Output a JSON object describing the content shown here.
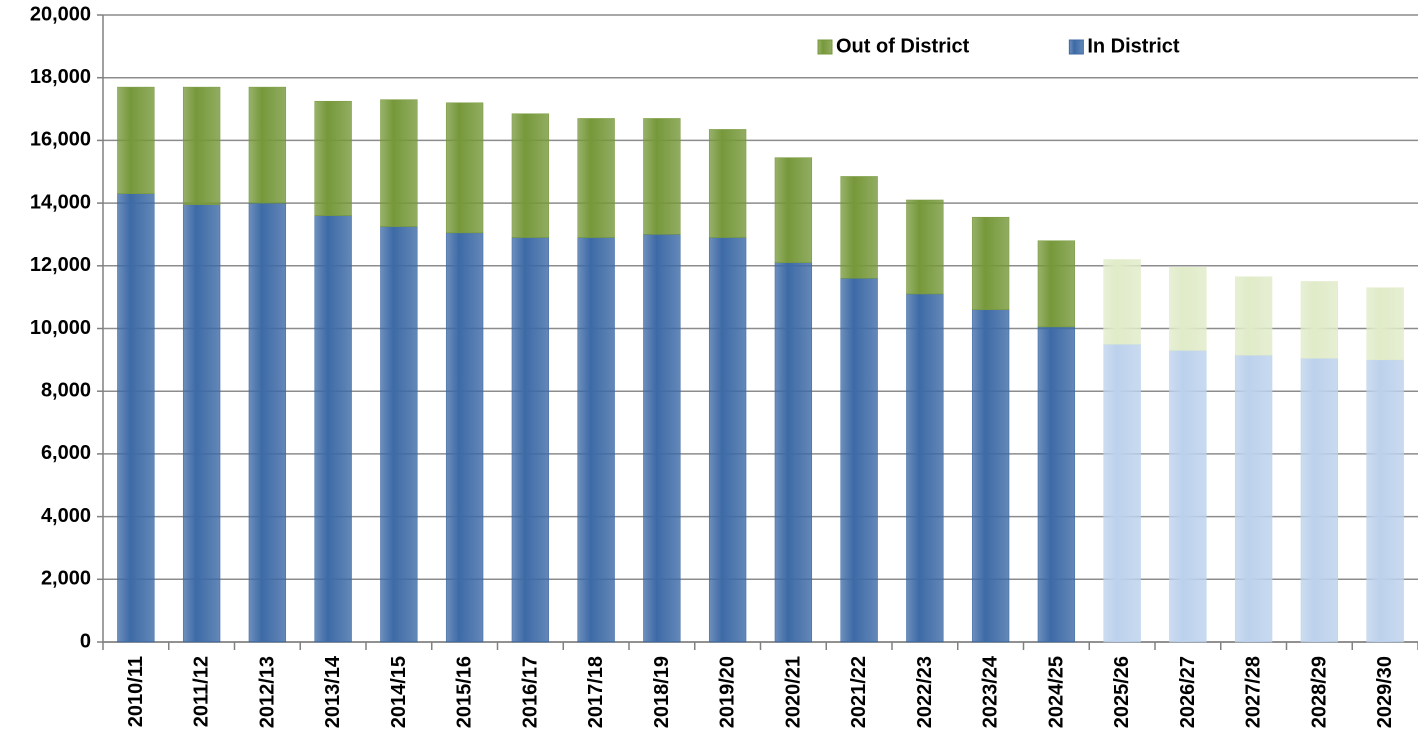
{
  "chart_data": {
    "type": "stacked_bar",
    "categories": [
      "2010/11",
      "2011/12",
      "2012/13",
      "2013/14",
      "2014/15",
      "2015/16",
      "2016/17",
      "2017/18",
      "2018/19",
      "2019/20",
      "2020/21",
      "2021/22",
      "2022/23",
      "2023/24",
      "2024/25",
      "2025/26",
      "2026/27",
      "2027/28",
      "2028/29",
      "2029/30"
    ],
    "series": [
      {
        "name": "In District",
        "color": "#3d6aa6",
        "colors": [
          "#3d6aa6",
          "#3d6aa6",
          "#3d6aa6",
          "#3d6aa6",
          "#3d6aa6",
          "#3d6aa6",
          "#3d6aa6",
          "#3d6aa6",
          "#3d6aa6",
          "#3d6aa6",
          "#3d6aa6",
          "#3d6aa6",
          "#3d6aa6",
          "#3d6aa6",
          "#3d6aa6",
          "#bcd1ec",
          "#bcd1ec",
          "#bcd1ec",
          "#bcd1ec",
          "#bcd1ec"
        ],
        "values": [
          14300,
          13950,
          14000,
          13600,
          13250,
          13050,
          12900,
          12900,
          13000,
          12900,
          12100,
          11600,
          11100,
          10600,
          10050,
          9500,
          9300,
          9150,
          9050,
          9000
        ]
      },
      {
        "name": "Out of District",
        "color": "#76983a",
        "colors": [
          "#76983a",
          "#76983a",
          "#76983a",
          "#76983a",
          "#76983a",
          "#76983a",
          "#76983a",
          "#76983a",
          "#76983a",
          "#76983a",
          "#76983a",
          "#76983a",
          "#76983a",
          "#76983a",
          "#76983a",
          "#e0ebc8",
          "#e0ebc8",
          "#e0ebc8",
          "#e0ebc8",
          "#e0ebc8"
        ],
        "values": [
          3400,
          3750,
          3700,
          3650,
          4050,
          4150,
          3950,
          3800,
          3700,
          3450,
          3350,
          3250,
          3000,
          2950,
          2750,
          2700,
          2650,
          2500,
          2450,
          2300
        ]
      }
    ],
    "ylim": [
      0,
      20000
    ],
    "yticks": [
      {
        "value": 0,
        "label": "0"
      },
      {
        "value": 2000,
        "label": "2,000"
      },
      {
        "value": 4000,
        "label": "4,000"
      },
      {
        "value": 6000,
        "label": "6,000"
      },
      {
        "value": 8000,
        "label": "8,000"
      },
      {
        "value": 10000,
        "label": "10,000"
      },
      {
        "value": 12000,
        "label": "12,000"
      },
      {
        "value": 14000,
        "label": "14,000"
      },
      {
        "value": 16000,
        "label": "16,000"
      },
      {
        "value": 18000,
        "label": "18,000"
      },
      {
        "value": 20000,
        "label": "20,000"
      }
    ],
    "grid": true,
    "legend": "top-right"
  }
}
